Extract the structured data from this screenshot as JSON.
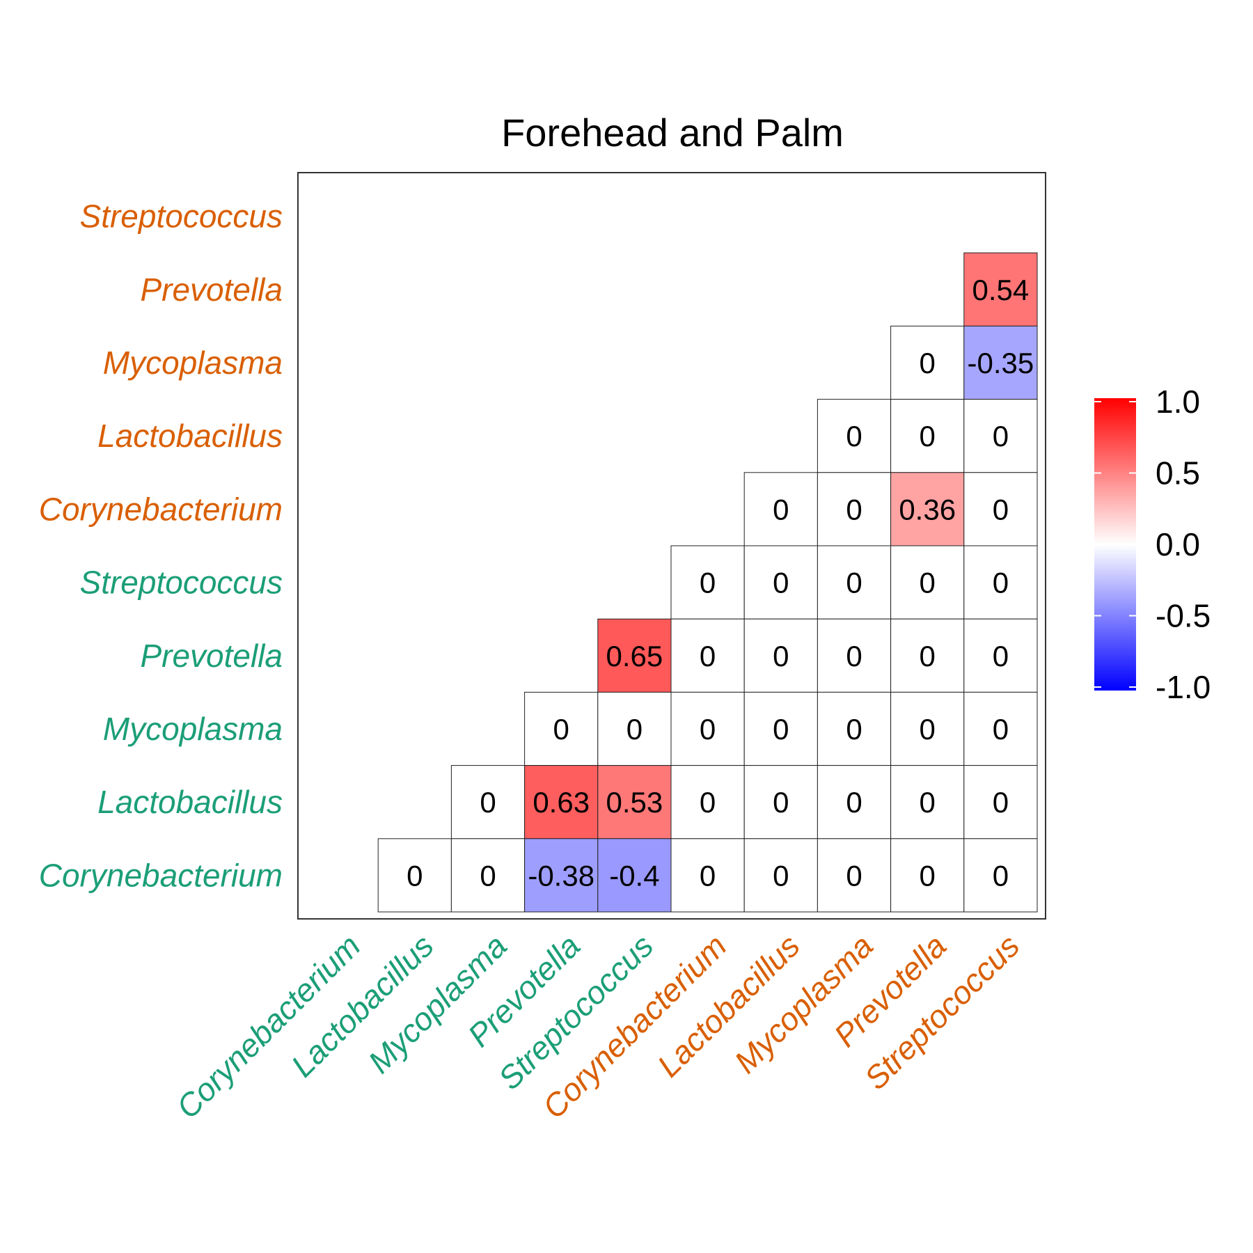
{
  "chart_data": {
    "type": "heatmap",
    "title": "Forehead and Palm",
    "x_labels": [
      "Corynebacterium",
      "Lactobacillus",
      "Mycoplasma",
      "Prevotella",
      "Streptococcus",
      "Corynebacterium",
      "Lactobacillus",
      "Mycoplasma",
      "Prevotella",
      "Streptococcus"
    ],
    "y_labels_top_to_bottom": [
      "Streptococcus",
      "Prevotella",
      "Mycoplasma",
      "Lactobacillus",
      "Corynebacterium",
      "Streptococcus",
      "Prevotella",
      "Mycoplasma",
      "Lactobacillus",
      "Corynebacterium"
    ],
    "label_groups": [
      "Forehead",
      "Forehead",
      "Forehead",
      "Forehead",
      "Forehead",
      "Palm",
      "Palm",
      "Palm",
      "Palm",
      "Palm"
    ],
    "group_colors": {
      "first_five_x_last_five_y": "#1b9e77",
      "other": "#d95f02"
    },
    "label_colors_x": [
      "#1b9e77",
      "#1b9e77",
      "#1b9e77",
      "#1b9e77",
      "#1b9e77",
      "#d95f02",
      "#d95f02",
      "#d95f02",
      "#d95f02",
      "#d95f02"
    ],
    "label_colors_y": [
      "#d95f02",
      "#d95f02",
      "#d95f02",
      "#d95f02",
      "#d95f02",
      "#1b9e77",
      "#1b9e77",
      "#1b9e77",
      "#1b9e77",
      "#1b9e77"
    ],
    "cells": [
      {
        "row": 1,
        "col": 9,
        "value": 0.54,
        "label": "0.54"
      },
      {
        "row": 2,
        "col": 8,
        "value": 0,
        "label": "0"
      },
      {
        "row": 2,
        "col": 9,
        "value": -0.35,
        "label": "-0.35"
      },
      {
        "row": 3,
        "col": 7,
        "value": 0,
        "label": "0"
      },
      {
        "row": 3,
        "col": 8,
        "value": 0,
        "label": "0"
      },
      {
        "row": 3,
        "col": 9,
        "value": 0,
        "label": "0"
      },
      {
        "row": 4,
        "col": 6,
        "value": 0,
        "label": "0"
      },
      {
        "row": 4,
        "col": 7,
        "value": 0,
        "label": "0"
      },
      {
        "row": 4,
        "col": 8,
        "value": 0.36,
        "label": "0.36"
      },
      {
        "row": 4,
        "col": 9,
        "value": 0,
        "label": "0"
      },
      {
        "row": 5,
        "col": 5,
        "value": 0,
        "label": "0"
      },
      {
        "row": 5,
        "col": 6,
        "value": 0,
        "label": "0"
      },
      {
        "row": 5,
        "col": 7,
        "value": 0,
        "label": "0"
      },
      {
        "row": 5,
        "col": 8,
        "value": 0,
        "label": "0"
      },
      {
        "row": 5,
        "col": 9,
        "value": 0,
        "label": "0"
      },
      {
        "row": 6,
        "col": 4,
        "value": 0.65,
        "label": "0.65"
      },
      {
        "row": 6,
        "col": 5,
        "value": 0,
        "label": "0"
      },
      {
        "row": 6,
        "col": 6,
        "value": 0,
        "label": "0"
      },
      {
        "row": 6,
        "col": 7,
        "value": 0,
        "label": "0"
      },
      {
        "row": 6,
        "col": 8,
        "value": 0,
        "label": "0"
      },
      {
        "row": 6,
        "col": 9,
        "value": 0,
        "label": "0"
      },
      {
        "row": 7,
        "col": 3,
        "value": 0,
        "label": "0"
      },
      {
        "row": 7,
        "col": 4,
        "value": 0,
        "label": "0"
      },
      {
        "row": 7,
        "col": 5,
        "value": 0,
        "label": "0"
      },
      {
        "row": 7,
        "col": 6,
        "value": 0,
        "label": "0"
      },
      {
        "row": 7,
        "col": 7,
        "value": 0,
        "label": "0"
      },
      {
        "row": 7,
        "col": 8,
        "value": 0,
        "label": "0"
      },
      {
        "row": 7,
        "col": 9,
        "value": 0,
        "label": "0"
      },
      {
        "row": 8,
        "col": 2,
        "value": 0,
        "label": "0"
      },
      {
        "row": 8,
        "col": 3,
        "value": 0.63,
        "label": "0.63"
      },
      {
        "row": 8,
        "col": 4,
        "value": 0.53,
        "label": "0.53"
      },
      {
        "row": 8,
        "col": 5,
        "value": 0,
        "label": "0"
      },
      {
        "row": 8,
        "col": 6,
        "value": 0,
        "label": "0"
      },
      {
        "row": 8,
        "col": 7,
        "value": 0,
        "label": "0"
      },
      {
        "row": 8,
        "col": 8,
        "value": 0,
        "label": "0"
      },
      {
        "row": 8,
        "col": 9,
        "value": 0,
        "label": "0"
      },
      {
        "row": 9,
        "col": 1,
        "value": 0,
        "label": "0"
      },
      {
        "row": 9,
        "col": 2,
        "value": 0,
        "label": "0"
      },
      {
        "row": 9,
        "col": 3,
        "value": -0.38,
        "label": "-0.38"
      },
      {
        "row": 9,
        "col": 4,
        "value": -0.4,
        "label": "-0.4"
      },
      {
        "row": 9,
        "col": 5,
        "value": 0,
        "label": "0"
      },
      {
        "row": 9,
        "col": 6,
        "value": 0,
        "label": "0"
      },
      {
        "row": 9,
        "col": 7,
        "value": 0,
        "label": "0"
      },
      {
        "row": 9,
        "col": 8,
        "value": 0,
        "label": "0"
      },
      {
        "row": 9,
        "col": 9,
        "value": 0,
        "label": "0"
      }
    ],
    "legend": {
      "placement": "right",
      "ticks": [
        "1.0",
        "0.5",
        "0.0",
        "-0.5",
        "-1.0"
      ],
      "tick_values": [
        1.0,
        0.5,
        0.0,
        -0.5,
        -1.0
      ],
      "colors": {
        "high": "#ff0000",
        "mid": "#ffffff",
        "low": "#0000ff"
      }
    },
    "value_range": [
      -1,
      1
    ],
    "grid": false
  }
}
